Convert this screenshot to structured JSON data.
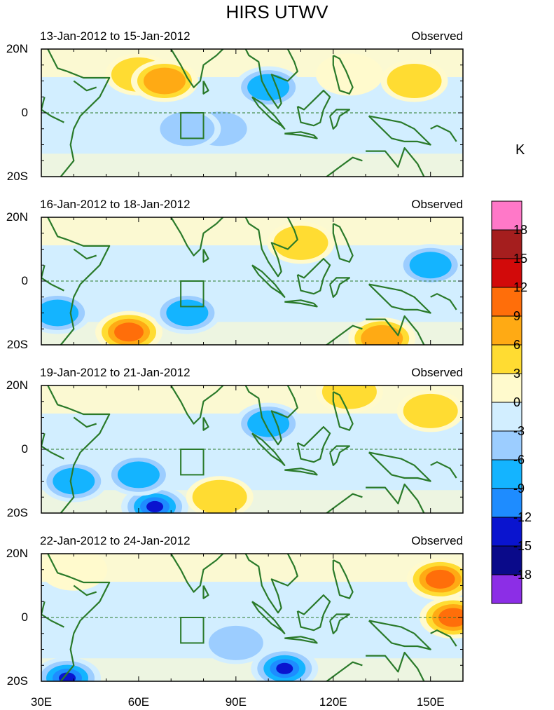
{
  "figure": {
    "title": "HIRS UTWV",
    "unit_label": "K"
  },
  "chart_data": {
    "type": "contour-map-panels",
    "title": "HIRS UTWV",
    "region": {
      "lon_range": [
        30,
        160
      ],
      "lat_range": [
        -20,
        20
      ]
    },
    "x_tick_labels": [
      "30E",
      "60E",
      "90E",
      "120E",
      "150E"
    ],
    "y_tick_labels": [
      "20N",
      "0",
      "20S"
    ],
    "colorbar": {
      "unit": "K",
      "levels": [
        -18,
        -15,
        -12,
        -9,
        -6,
        -3,
        0,
        3,
        6,
        9,
        12,
        15,
        18
      ],
      "level_labels": [
        "18",
        "15",
        "12",
        "9",
        "6",
        "3",
        "0",
        "-3",
        "-6",
        "-9",
        "-12",
        "-15",
        "-18"
      ],
      "colors": [
        "#8c2ee6",
        "#0a0a8a",
        "#0a14cf",
        "#1e8cff",
        "#14b4ff",
        "#9ccdff",
        "#d2eeff",
        "#fffacd",
        "#ffdc32",
        "#ffaa14",
        "#ff6e0a",
        "#d20a0a",
        "#a51e1e",
        "#ff78c8"
      ]
    },
    "panels": [
      {
        "date_range": "13-Jan-2012 to 15-Jan-2012",
        "label": "Observed",
        "features": [
          {
            "lon": 60,
            "lat": 12,
            "level": 6
          },
          {
            "lon": 68,
            "lat": 10,
            "level": 9
          },
          {
            "lon": 125,
            "lat": 12,
            "level": 3
          },
          {
            "lon": 145,
            "lat": 10,
            "level": 6
          },
          {
            "lon": 100,
            "lat": 8,
            "level": -9
          },
          {
            "lon": 85,
            "lat": -5,
            "level": -6
          },
          {
            "lon": 75,
            "lat": -5,
            "level": -6
          }
        ]
      },
      {
        "date_range": "16-Jan-2012 to 18-Jan-2012",
        "label": "Observed",
        "features": [
          {
            "lon": 110,
            "lat": 12,
            "level": 6
          },
          {
            "lon": 57,
            "lat": -16,
            "level": 12
          },
          {
            "lon": 135,
            "lat": -18,
            "level": 9
          },
          {
            "lon": 75,
            "lat": -10,
            "level": -9
          },
          {
            "lon": 35,
            "lat": -10,
            "level": -9
          },
          {
            "lon": 150,
            "lat": 5,
            "level": -9
          }
        ]
      },
      {
        "date_range": "19-Jan-2012 to 21-Jan-2012",
        "label": "Observed",
        "features": [
          {
            "lon": 65,
            "lat": -18,
            "level": -15
          },
          {
            "lon": 60,
            "lat": -8,
            "level": -9
          },
          {
            "lon": 100,
            "lat": 8,
            "level": -9
          },
          {
            "lon": 85,
            "lat": -15,
            "level": 6
          },
          {
            "lon": 125,
            "lat": 18,
            "level": 6
          },
          {
            "lon": 150,
            "lat": 12,
            "level": 6
          },
          {
            "lon": 40,
            "lat": -10,
            "level": -9
          }
        ]
      },
      {
        "date_range": "22-Jan-2012 to 24-Jan-2012",
        "label": "Observed",
        "features": [
          {
            "lon": 153,
            "lat": 12,
            "level": 12
          },
          {
            "lon": 157,
            "lat": 0,
            "level": 12
          },
          {
            "lon": 105,
            "lat": -16,
            "level": -15
          },
          {
            "lon": 38,
            "lat": -19,
            "level": -15
          },
          {
            "lon": 90,
            "lat": -8,
            "level": -6
          },
          {
            "lon": 40,
            "lat": 15,
            "level": 3
          }
        ]
      }
    ]
  }
}
